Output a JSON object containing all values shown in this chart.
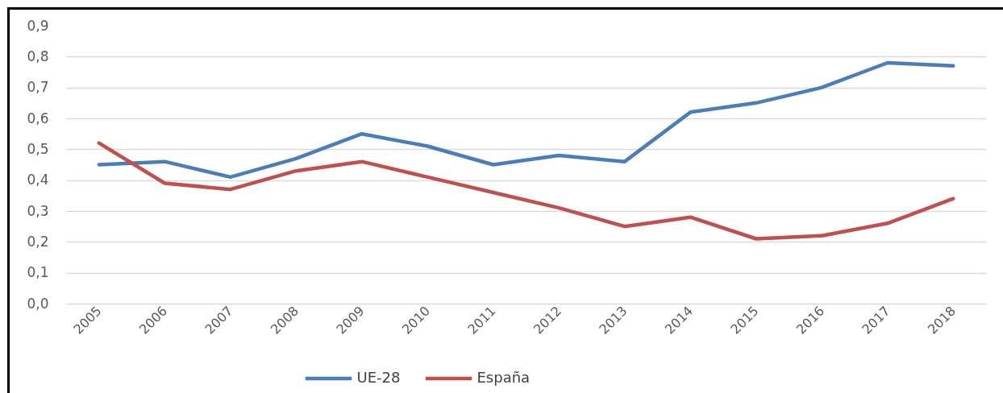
{
  "chart_data": {
    "type": "line",
    "categories": [
      "2005",
      "2006",
      "2007",
      "2008",
      "2009",
      "2010",
      "2011",
      "2012",
      "2013",
      "2014",
      "2015",
      "2016",
      "2017",
      "2018"
    ],
    "series": [
      {
        "name": "UE-28",
        "color": "#4a7ebb",
        "values": [
          0.45,
          0.46,
          0.41,
          0.47,
          0.55,
          0.51,
          0.45,
          0.48,
          0.46,
          0.62,
          0.65,
          0.7,
          0.78,
          0.77
        ]
      },
      {
        "name": "España",
        "color": "#c0504d",
        "values": [
          0.52,
          0.39,
          0.37,
          0.43,
          0.46,
          0.41,
          0.36,
          0.31,
          0.25,
          0.28,
          0.21,
          0.22,
          0.26,
          0.34
        ]
      }
    ],
    "ylim": [
      0,
      0.9
    ],
    "yticks": [
      {
        "value": 0,
        "label": "0,0"
      },
      {
        "value": 0.1,
        "label": "0,1"
      },
      {
        "value": 0.2,
        "label": "0,2"
      },
      {
        "value": 0.3,
        "label": "0,3"
      },
      {
        "value": 0.4,
        "label": "0,4"
      },
      {
        "value": 0.5,
        "label": "0,5"
      },
      {
        "value": 0.6,
        "label": "0,6"
      },
      {
        "value": 0.7,
        "label": "0,7"
      },
      {
        "value": 0.8,
        "label": "0,8"
      },
      {
        "value": 0.9,
        "label": "0,9"
      }
    ],
    "grid": "y",
    "legend": "bottom",
    "line_style": "solid"
  }
}
